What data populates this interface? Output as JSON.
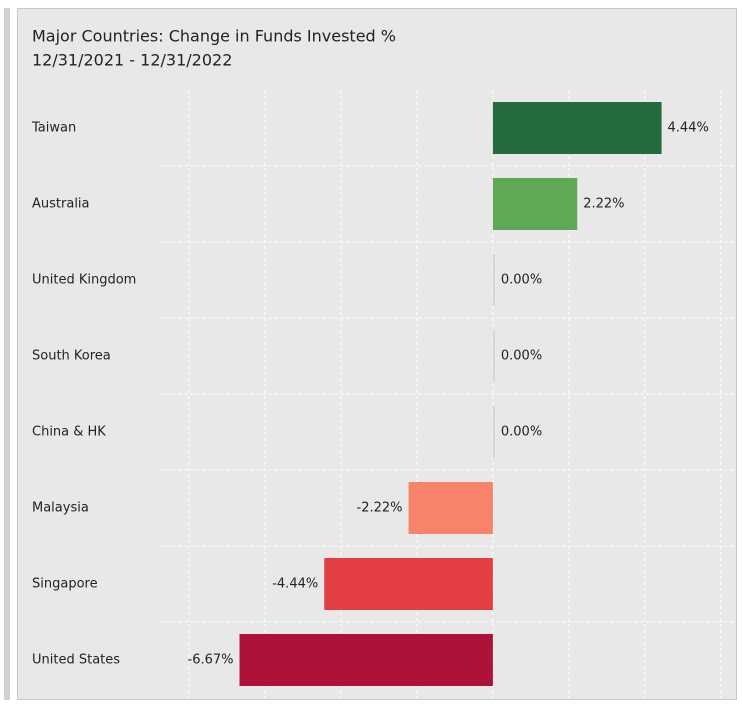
{
  "chart_data": {
    "type": "bar",
    "orientation": "horizontal",
    "title": "Major Countries:  Change in Funds Invested %",
    "subtitle": "12/31/2021 - 12/31/2022",
    "categories": [
      "Taiwan",
      "Australia",
      "United Kingdom",
      "South Korea",
      "China & HK",
      "Malaysia",
      "Singapore",
      "United States"
    ],
    "values": [
      4.44,
      2.22,
      0,
      0,
      0,
      -2.22,
      -4.44,
      -6.67
    ],
    "value_labels": [
      "4.44%",
      "2.22%",
      "0.00%",
      "0.00%",
      "0.00%",
      "-2.22%",
      "-4.44%",
      "-6.67%"
    ],
    "colors": [
      "#236b3c",
      "#5fa856",
      "#d6d6c8",
      "#d6d6c8",
      "#d6d6c8",
      "#f7836b",
      "#e33f43",
      "#ae1238"
    ],
    "xlim": [
      -8.75,
      6.4
    ],
    "xticks": [
      -8,
      -6,
      -4,
      -2,
      0,
      2,
      4,
      6
    ],
    "grid": true
  }
}
